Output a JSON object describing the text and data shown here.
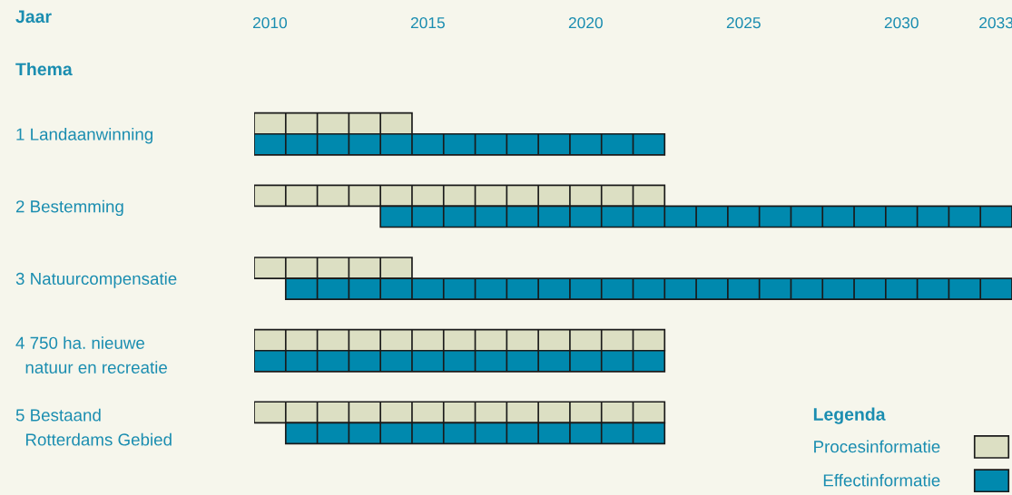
{
  "chart_data": {
    "type": "bar",
    "orientation": "horizontal",
    "xlabel": "Jaar",
    "ylabel": "Thema",
    "categories": [
      "1 Landaanwinning",
      "2 Bestemming",
      "3 Natuurcompensatie",
      "4 750 ha. nieuwe\n  natuur en recreatie",
      "5 Bestaand\n  Rotterdams Gebied"
    ],
    "series": [
      {
        "name": "Procesinformatie",
        "color": "#dcdfc3",
        "base": [
          2009.5,
          2009.5,
          2009.5,
          2009.5,
          2009.5
        ],
        "values": [
          5,
          13,
          5,
          13,
          13
        ]
      },
      {
        "name": "Effectinformatie",
        "color": "#0089ae",
        "base": [
          2009.5,
          2013.5,
          2010.5,
          2009.5,
          2010.5
        ],
        "values": [
          13,
          20,
          23,
          13,
          12
        ]
      }
    ],
    "xlim": [
      2009.5,
      2033.5
    ],
    "xticks": [
      2010,
      2015,
      2020,
      2025,
      2030,
      2033
    ],
    "legend": "bottom right",
    "legend_title": "Legenda",
    "grid": false
  }
}
